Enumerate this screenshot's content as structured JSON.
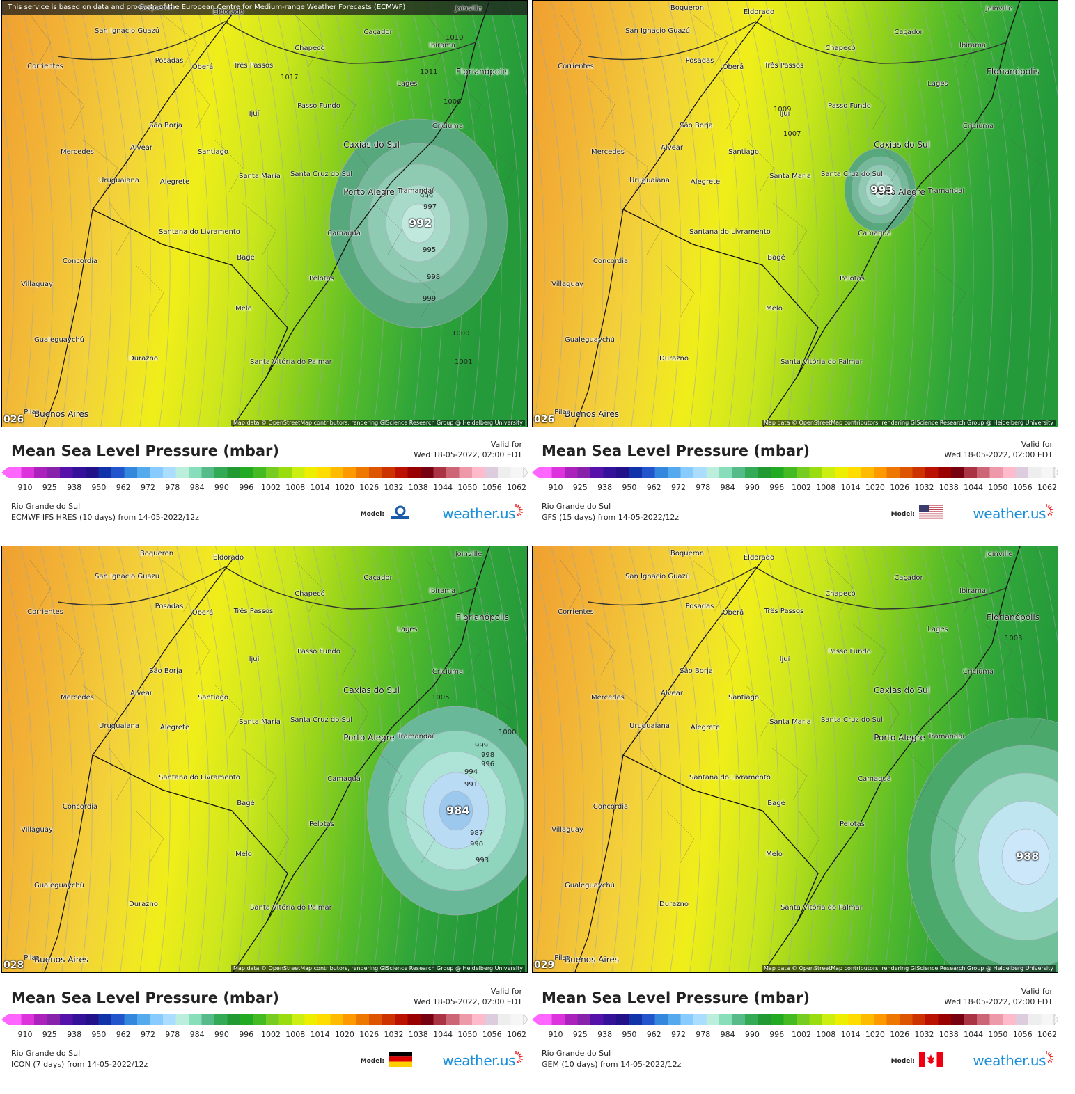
{
  "notice": "This service is based on data and products of the European Centre for Medium-range Weather Forecasts (ECMWF)",
  "attribution": "Map data © OpenStreetMap contributors, rendering GIScience Research Group @ Heidelberg University",
  "title": "Mean Sea Level Pressure (mbar)",
  "valid_label": "Valid for",
  "valid_date": "Wed 18-05-2022, 02:00 EDT",
  "region": "Rio Grande do Sul",
  "model_label": "Model:",
  "brand": "weather.us",
  "scale_ticks": [
    "910",
    "925",
    "938",
    "950",
    "962",
    "972",
    "978",
    "984",
    "990",
    "996",
    "1002",
    "1008",
    "1014",
    "1020",
    "1026",
    "1032",
    "1038",
    "1044",
    "1050",
    "1056",
    "1062"
  ],
  "scale_colors": [
    "#ff66ff",
    "#dd33dd",
    "#aa22bb",
    "#8822aa",
    "#5511aa",
    "#331199",
    "#221188",
    "#1133aa",
    "#2255cc",
    "#3388dd",
    "#55aaee",
    "#88ccff",
    "#aaddff",
    "#bbeedd",
    "#88ddbb",
    "#55bb88",
    "#33aa55",
    "#229933",
    "#22aa22",
    "#44bb22",
    "#77cc22",
    "#99dd11",
    "#ccee11",
    "#eeee00",
    "#ffdd00",
    "#ffbb00",
    "#ff9900",
    "#ee7700",
    "#dd5500",
    "#cc3300",
    "#bb1100",
    "#990000",
    "#770011",
    "#aa3344",
    "#cc6677",
    "#ee99aa",
    "#ffbbcc",
    "#ddccdd",
    "#eeeeee",
    "#f6f6f6"
  ],
  "panels": [
    {
      "frame": "026",
      "run_info": "ECMWF IFS HRES (10 days) from 14-05-2022/12z",
      "model": "ECMWF",
      "low_label": "992",
      "isobars": [
        "1017",
        "1011",
        "1010",
        "1006",
        "999",
        "997",
        "995",
        "998",
        "999",
        "1000",
        "1001"
      ]
    },
    {
      "frame": "026",
      "run_info": "GFS (15 days) from 14-05-2022/12z",
      "model": "GFS",
      "low_label": "993",
      "isobars": [
        "1009",
        "1007"
      ]
    },
    {
      "frame": "028",
      "run_info": "ICON (7 days) from 14-05-2022/12z",
      "model": "ICON",
      "low_label": "984",
      "isobars": [
        "1005",
        "1000",
        "999",
        "998",
        "996",
        "994",
        "991",
        "987",
        "990",
        "993"
      ]
    },
    {
      "frame": "029",
      "run_info": "GEM (10 days) from 14-05-2022/12z",
      "model": "GEM",
      "low_label": "988",
      "isobars": [
        "1003"
      ]
    }
  ],
  "cities": [
    "Joinville",
    "San Ignacio Guazú",
    "Caçador",
    "Ibirama",
    "Posadas",
    "Oberá",
    "Três Passos",
    "Chapecó",
    "Corrientes",
    "Lages",
    "Florianópolis",
    "Ijuí",
    "Passo Fundo",
    "São Borja",
    "Criciúma",
    "Mercedes",
    "Alvear",
    "Santiago",
    "Caxias do Sul",
    "Uruguaiana",
    "Alegrete",
    "Santa Maria",
    "Santa Cruz do Sul",
    "Porto Alegre",
    "Tramandaí",
    "Santana do Livramento",
    "Camaquã",
    "Concordia",
    "Bagé",
    "Villaguay",
    "Pelotas",
    "Melo",
    "Gualeguaychú",
    "Durazno",
    "Santa Vitória do Palmar",
    "Buenos Aires",
    "Pilar",
    "Eldorado",
    "Boqueron"
  ]
}
